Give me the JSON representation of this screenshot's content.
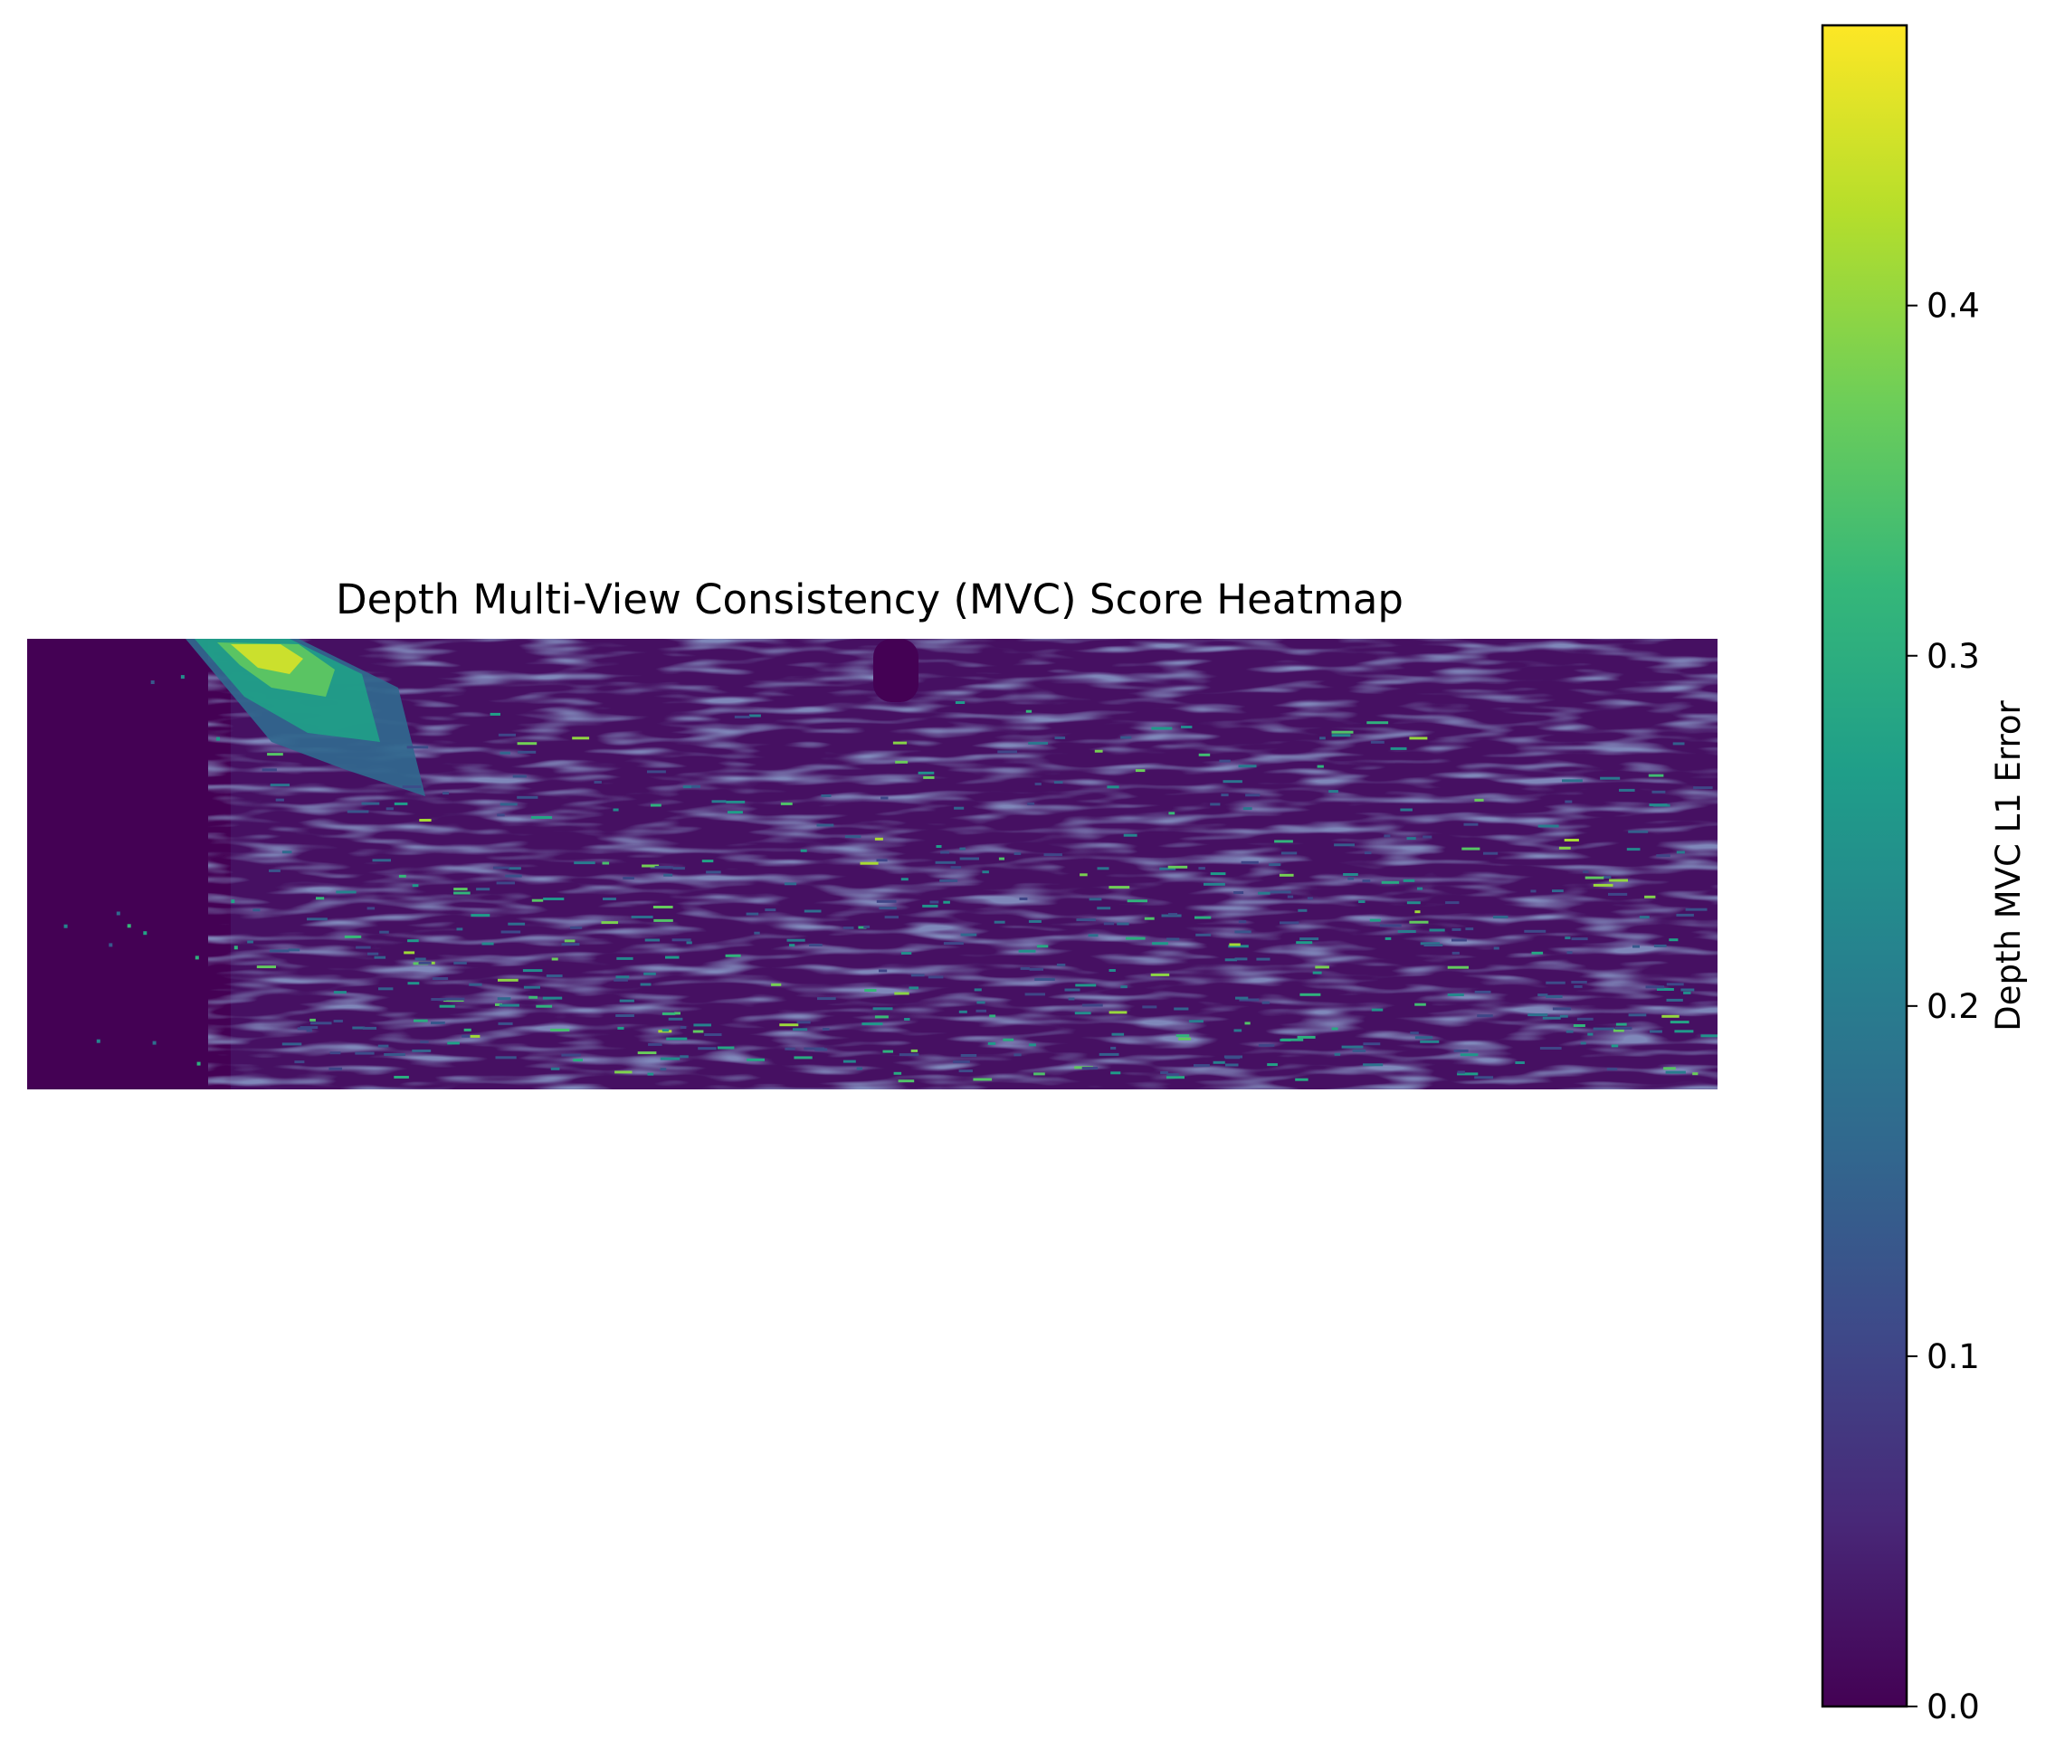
{
  "chart_data": {
    "type": "heatmap",
    "title": "Depth Multi-View Consistency (MVC) Score Heatmap",
    "xlabel": "",
    "ylabel": "",
    "axes_visible": false,
    "colormap": "viridis",
    "colormap_stops": [
      "#440154",
      "#482878",
      "#3e4989",
      "#31688e",
      "#26828e",
      "#1f9e89",
      "#35b779",
      "#6ece58",
      "#b5de2b",
      "#fde725"
    ],
    "value_range": [
      0.0,
      0.48
    ],
    "typical_value": 0.02,
    "notable_regions": [
      {
        "region": "top-left near-vertical surface",
        "approx_value": 0.3,
        "peak_value": 0.48
      },
      {
        "region": "left edge block",
        "approx_value": 0.0
      },
      {
        "region": "scattered streaks across floor",
        "approx_value": 0.15,
        "peak_value": 0.4
      }
    ],
    "colorbar": {
      "label": "Depth MVC L1 Error",
      "ticks": [
        0.0,
        0.1,
        0.2,
        0.3,
        0.4
      ],
      "tick_labels": [
        "0.0",
        "0.1",
        "0.2",
        "0.3",
        "0.4"
      ],
      "min": 0.0,
      "max": 0.48,
      "orientation": "vertical",
      "placement": "right"
    }
  }
}
